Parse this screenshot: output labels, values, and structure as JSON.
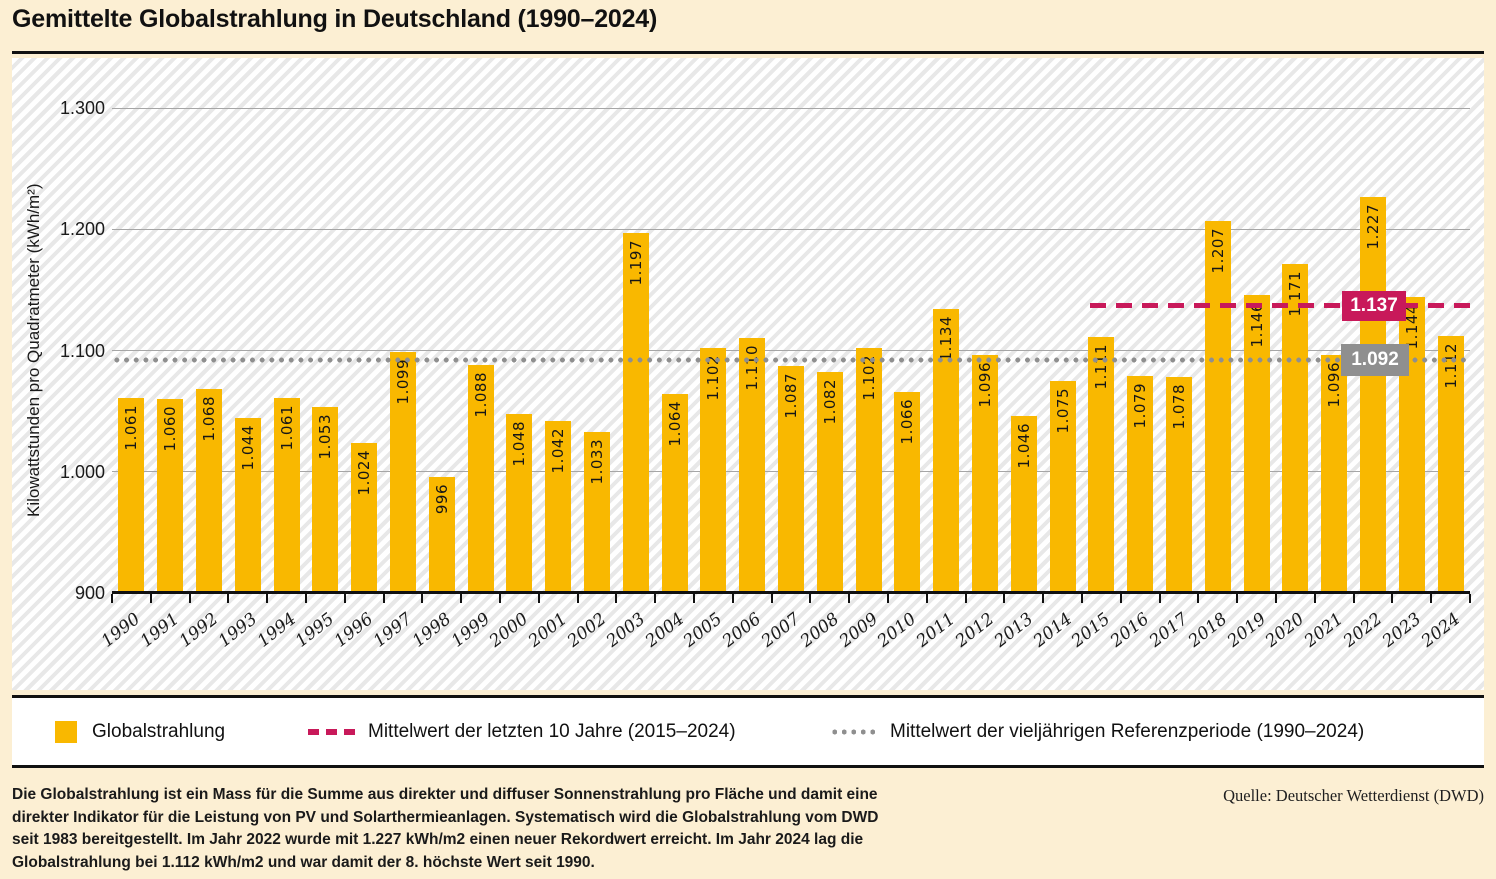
{
  "header": {
    "title": "Gemittelte Globalstrahlung in Deutschland (1990–2024)"
  },
  "chart_data": {
    "type": "bar",
    "title": "Gemittelte Globalstrahlung in Deutschland (1990–2024)",
    "xlabel": "",
    "ylabel": "Kilowattstunden pro Quadratmeter (kWh/m²)",
    "ylim": [
      900,
      1300
    ],
    "yticks": [
      {
        "value": 900,
        "label": "900"
      },
      {
        "value": 1000,
        "label": "1.000"
      },
      {
        "value": 1100,
        "label": "1.100"
      },
      {
        "value": 1200,
        "label": "1.200"
      },
      {
        "value": 1300,
        "label": "1.300"
      }
    ],
    "grid": "horizontal",
    "legend_position": "bottom",
    "bar_color": "#F9B800",
    "categories": [
      1990,
      1991,
      1992,
      1993,
      1994,
      1995,
      1996,
      1997,
      1998,
      1999,
      2000,
      2001,
      2002,
      2003,
      2004,
      2005,
      2006,
      2007,
      2008,
      2009,
      2010,
      2011,
      2012,
      2013,
      2014,
      2015,
      2016,
      2017,
      2018,
      2019,
      2020,
      2021,
      2022,
      2023,
      2024
    ],
    "values": [
      1061,
      1060,
      1068,
      1044,
      1061,
      1053,
      1024,
      1099,
      996,
      1088,
      1048,
      1042,
      1033,
      1197,
      1064,
      1102,
      1110,
      1087,
      1082,
      1102,
      1066,
      1134,
      1096,
      1046,
      1075,
      1111,
      1079,
      1078,
      1207,
      1146,
      1171,
      1096,
      1227,
      1144,
      1112
    ],
    "value_labels": [
      "1.061",
      "1.060",
      "1.068",
      "1.044",
      "1.061",
      "1.053",
      "1.024",
      "1.099",
      "996",
      "1.088",
      "1.048",
      "1.042",
      "1.033",
      "1.197",
      "1.064",
      "1.102",
      "1.110",
      "1.087",
      "1.082",
      "1.102",
      "1.066",
      "1.134",
      "1.096",
      "1.046",
      "1.075",
      "1.111",
      "1.079",
      "1.078",
      "1.207",
      "1.146",
      "1.171",
      "1.096",
      "1.227",
      "1.144",
      "1.112"
    ],
    "reference_lines": [
      {
        "id": "mean-last-10-years",
        "value": 1137,
        "label": "1.137",
        "line_style": "dashed",
        "color": "#C8195A",
        "start_year": 2015,
        "end_year": 2024
      },
      {
        "id": "mean-reference-period",
        "value": 1092,
        "label": "1.092",
        "line_style": "dotted",
        "color": "#8F8F8F",
        "start_year": 1990,
        "end_year": 2024
      }
    ],
    "legend": [
      {
        "label": "Globalstrahlung",
        "swatch": "square",
        "color": "#F9B800"
      },
      {
        "label": "Mittelwert der letzten 10 Jahre (2015–2024)",
        "swatch": "dashed-line",
        "color": "#C8195A"
      },
      {
        "label": "Mittelwert der vieljährigen Referenzperiode (1990–2024)",
        "swatch": "dotted-line",
        "color": "#8F8F8F"
      }
    ]
  },
  "footer": {
    "description_lines": [
      "Die Globalstrahlung ist ein Mass für die Summe aus direkter und diffuser Sonnenstrahlung pro Fläche und damit eine",
      "direkter Indikator für die Leistung von PV und Solarthermieanlagen. Systematisch wird die Globalstrahlung vom DWD",
      "seit 1983 bereitgestellt. Im Jahr 2022 wurde mit 1.227 kWh/m2 einen neuer Rekordwert erreicht. Im Jahr 2024 lag die",
      "Globalstrahlung bei 1.112 kWh/m2 und war damit der 8. höchste Wert seit 1990."
    ],
    "source": "Quelle: Deutscher Wetterdienst (DWD)"
  }
}
